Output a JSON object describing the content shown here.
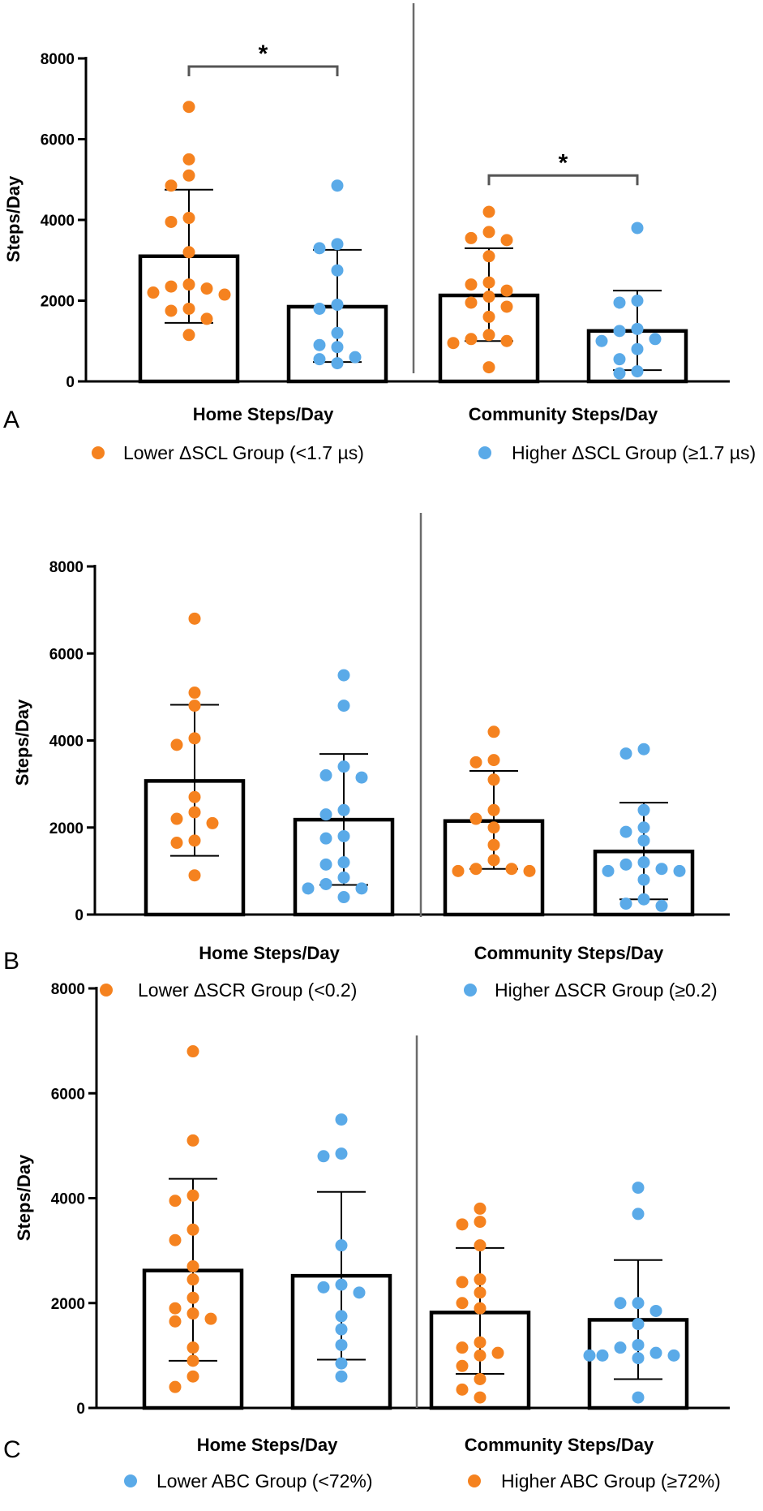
{
  "colors": {
    "orange": "#F5821F",
    "blue": "#5AAAE8",
    "divider": "#6b6b6b",
    "bracket": "#555555"
  },
  "chart_data": [
    {
      "type": "bar",
      "panel": "A",
      "ylabel": "Steps/Day",
      "ylim": [
        0,
        8000
      ],
      "yticks": [
        0,
        2000,
        4000,
        6000,
        8000
      ],
      "groups": [
        {
          "label": "Home Steps/Day",
          "bars": [
            {
              "series": "lower",
              "color": "#F5821F",
              "mean": 3100,
              "sd": [
                1450,
                4750
              ],
              "points": [
                6800,
                5500,
                5100,
                4850,
                4050,
                3950,
                3200,
                2400,
                2350,
                2300,
                2200,
                2150,
                1800,
                1750,
                1550,
                1150
              ]
            },
            {
              "series": "higher",
              "color": "#5AAAE8",
              "mean": 1850,
              "sd": [
                480,
                3260
              ],
              "points": [
                4850,
                3400,
                3300,
                2750,
                1900,
                1800,
                1200,
                900,
                850,
                600,
                550,
                450
              ]
            }
          ]
        },
        {
          "label": "Community Steps/Day",
          "bars": [
            {
              "series": "lower",
              "color": "#F5821F",
              "mean": 2130,
              "sd": [
                1000,
                3300
              ],
              "points": [
                4200,
                3700,
                3550,
                3500,
                3100,
                2450,
                2400,
                2250,
                2100,
                1950,
                1850,
                1600,
                1150,
                1050,
                1000,
                950,
                350
              ]
            },
            {
              "series": "higher",
              "color": "#5AAAE8",
              "mean": 1250,
              "sd": [
                280,
                2250
              ],
              "points": [
                3800,
                2000,
                1950,
                1300,
                1250,
                1050,
                1000,
                800,
                550,
                250,
                200
              ]
            }
          ]
        }
      ],
      "significance": [
        {
          "group": 0,
          "label": "*",
          "y": 7800
        },
        {
          "group": 1,
          "label": "*",
          "y": 5100
        }
      ],
      "legend": [
        {
          "text": "Lower ΔSCL Group (<1.7 µs)",
          "color": "#F5821F"
        },
        {
          "text": "Higher ΔSCL Group (≥1.7 µs)",
          "color": "#5AAAE8"
        }
      ]
    },
    {
      "type": "bar",
      "panel": "B",
      "ylabel": "Steps/Day",
      "ylim": [
        0,
        8000
      ],
      "yticks": [
        0,
        2000,
        4000,
        6000,
        8000
      ],
      "groups": [
        {
          "label": "Home Steps/Day",
          "bars": [
            {
              "series": "lower",
              "color": "#F5821F",
              "mean": 3070,
              "sd": [
                1350,
                4820
              ],
              "points": [
                6800,
                5100,
                4800,
                4050,
                3900,
                2700,
                2350,
                2200,
                2100,
                1700,
                1650,
                900
              ]
            },
            {
              "series": "higher",
              "color": "#5AAAE8",
              "mean": 2180,
              "sd": [
                680,
                3690
              ],
              "points": [
                5500,
                4800,
                3400,
                3200,
                3150,
                2400,
                2300,
                1800,
                1750,
                1200,
                1150,
                850,
                700,
                600,
                600,
                400
              ]
            }
          ]
        },
        {
          "label": "Community Steps/Day",
          "bars": [
            {
              "series": "lower",
              "color": "#F5821F",
              "mean": 2150,
              "sd": [
                1050,
                3300
              ],
              "points": [
                4200,
                3550,
                3500,
                3100,
                2400,
                2200,
                2000,
                1600,
                1250,
                1050,
                1050,
                1000,
                1000
              ]
            },
            {
              "series": "higher",
              "color": "#5AAAE8",
              "mean": 1450,
              "sd": [
                350,
                2570
              ],
              "points": [
                3800,
                3700,
                2400,
                2000,
                1900,
                1700,
                1200,
                1150,
                1050,
                1000,
                1000,
                800,
                350,
                250,
                200
              ]
            }
          ]
        }
      ],
      "significance": [],
      "legend": [
        {
          "text": "Lower ΔSCR Group (<0.2)",
          "color": "#F5821F"
        },
        {
          "text": "Higher ΔSCR Group (≥0.2)",
          "color": "#5AAAE8"
        }
      ]
    },
    {
      "type": "bar",
      "panel": "C",
      "ylabel": "Steps/Day",
      "ylim": [
        0,
        8000
      ],
      "yticks": [
        0,
        2000,
        4000,
        6000,
        8000
      ],
      "groups": [
        {
          "label": "Home Steps/Day",
          "bars": [
            {
              "series": "higher",
              "color": "#F5821F",
              "mean": 2620,
              "sd": [
                900,
                4370
              ],
              "points": [
                6800,
                5100,
                4050,
                3950,
                3400,
                3200,
                2700,
                2450,
                2100,
                1900,
                1800,
                1700,
                1650,
                1150,
                900,
                600,
                400
              ]
            },
            {
              "series": "lower",
              "color": "#5AAAE8",
              "mean": 2520,
              "sd": [
                920,
                4120
              ],
              "points": [
                5500,
                4850,
                4800,
                3100,
                2350,
                2300,
                2200,
                1750,
                1500,
                1200,
                850,
                600
              ]
            }
          ]
        },
        {
          "label": "Community Steps/Day",
          "bars": [
            {
              "series": "higher",
              "color": "#F5821F",
              "mean": 1820,
              "sd": [
                650,
                3050
              ],
              "points": [
                3800,
                3550,
                3500,
                3100,
                2450,
                2400,
                2200,
                2000,
                1900,
                1250,
                1150,
                1050,
                1000,
                800,
                550,
                350,
                200
              ]
            },
            {
              "series": "lower",
              "color": "#5AAAE8",
              "mean": 1680,
              "sd": [
                550,
                2820
              ],
              "points": [
                4200,
                3700,
                2000,
                2000,
                1850,
                1600,
                1200,
                1150,
                1050,
                1000,
                1000,
                1000,
                950,
                200
              ]
            }
          ]
        }
      ],
      "significance": [],
      "legend": [
        {
          "text": "Lower ABC Group (<72%)",
          "color": "#5AAAE8"
        },
        {
          "text": "Higher ABC Group (≥72%)",
          "color": "#F5821F"
        }
      ]
    }
  ]
}
